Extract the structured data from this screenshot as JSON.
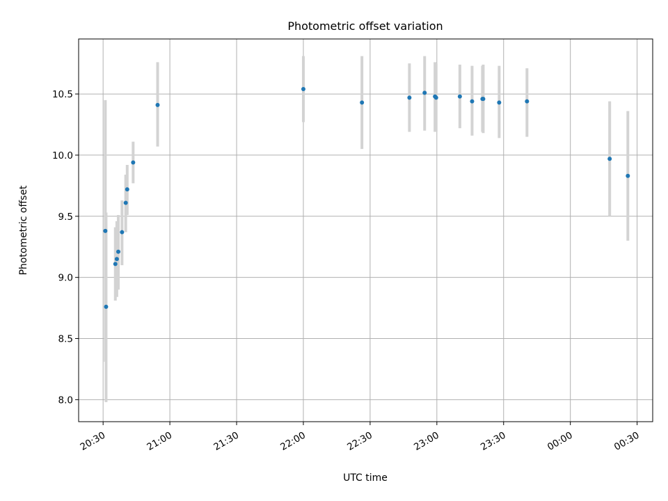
{
  "chart_data": {
    "type": "scatter",
    "title": "Photometric offset variation",
    "xlabel": "UTC time",
    "ylabel": "Photometric offset",
    "x_tick_labels": [
      "20:30",
      "21:00",
      "21:30",
      "22:00",
      "22:30",
      "23:00",
      "23:30",
      "00:00",
      "00:30"
    ],
    "x_ticks": [
      "20:30",
      "21:00",
      "21:30",
      "22:00",
      "22:30",
      "23:00",
      "23:30",
      "24:00",
      "24:30"
    ],
    "xlim": [
      "20:19",
      "24:37"
    ],
    "y_tick_labels": [
      "8.0",
      "8.5",
      "9.0",
      "9.5",
      "10.0",
      "10.5"
    ],
    "y_ticks": [
      8.0,
      8.5,
      9.0,
      9.5,
      10.0,
      10.5
    ],
    "ylim": [
      7.82,
      10.95
    ],
    "grid": true,
    "marker_color": "#1f77b4",
    "errorbar_color": "#d3d3d3",
    "points": [
      {
        "t": "20:31:00",
        "y": 9.38,
        "ylow": 8.31,
        "yhigh": 10.45
      },
      {
        "t": "20:31:20",
        "y": 8.76,
        "ylow": 7.98,
        "yhigh": 9.53
      },
      {
        "t": "20:35:30",
        "y": 9.11,
        "ylow": 8.81,
        "yhigh": 9.41
      },
      {
        "t": "20:36:10",
        "y": 9.15,
        "ylow": 8.84,
        "yhigh": 9.46
      },
      {
        "t": "20:36:50",
        "y": 9.21,
        "ylow": 8.9,
        "yhigh": 9.51
      },
      {
        "t": "20:38:30",
        "y": 9.37,
        "ylow": 9.1,
        "yhigh": 9.63
      },
      {
        "t": "20:40:10",
        "y": 9.61,
        "ylow": 9.37,
        "yhigh": 9.84
      },
      {
        "t": "20:40:50",
        "y": 9.72,
        "ylow": 9.51,
        "yhigh": 9.92
      },
      {
        "t": "20:43:30",
        "y": 9.94,
        "ylow": 9.77,
        "yhigh": 10.11
      },
      {
        "t": "20:54:30",
        "y": 10.41,
        "ylow": 10.07,
        "yhigh": 10.76
      },
      {
        "t": "22:00:00",
        "y": 10.54,
        "ylow": 10.27,
        "yhigh": 10.81
      },
      {
        "t": "22:26:20",
        "y": 10.43,
        "ylow": 10.05,
        "yhigh": 10.81
      },
      {
        "t": "22:47:40",
        "y": 10.47,
        "ylow": 10.19,
        "yhigh": 10.75
      },
      {
        "t": "22:54:30",
        "y": 10.51,
        "ylow": 10.2,
        "yhigh": 10.81
      },
      {
        "t": "22:59:10",
        "y": 10.48,
        "ylow": 10.19,
        "yhigh": 10.76
      },
      {
        "t": "22:59:40",
        "y": 10.47,
        "ylow": 10.19,
        "yhigh": 10.75
      },
      {
        "t": "23:10:20",
        "y": 10.48,
        "ylow": 10.22,
        "yhigh": 10.74
      },
      {
        "t": "23:15:50",
        "y": 10.44,
        "ylow": 10.16,
        "yhigh": 10.73
      },
      {
        "t": "23:20:50",
        "y": 10.46,
        "ylow": 10.18,
        "yhigh": 10.74
      },
      {
        "t": "23:20:30",
        "y": 10.46,
        "ylow": 10.19,
        "yhigh": 10.73
      },
      {
        "t": "23:28:00",
        "y": 10.43,
        "ylow": 10.14,
        "yhigh": 10.73
      },
      {
        "t": "23:40:30",
        "y": 10.44,
        "ylow": 10.15,
        "yhigh": 10.71
      },
      {
        "t": "24:17:40",
        "y": 9.97,
        "ylow": 9.5,
        "yhigh": 10.44
      },
      {
        "t": "24:25:50",
        "y": 9.83,
        "ylow": 9.3,
        "yhigh": 10.36
      }
    ]
  }
}
